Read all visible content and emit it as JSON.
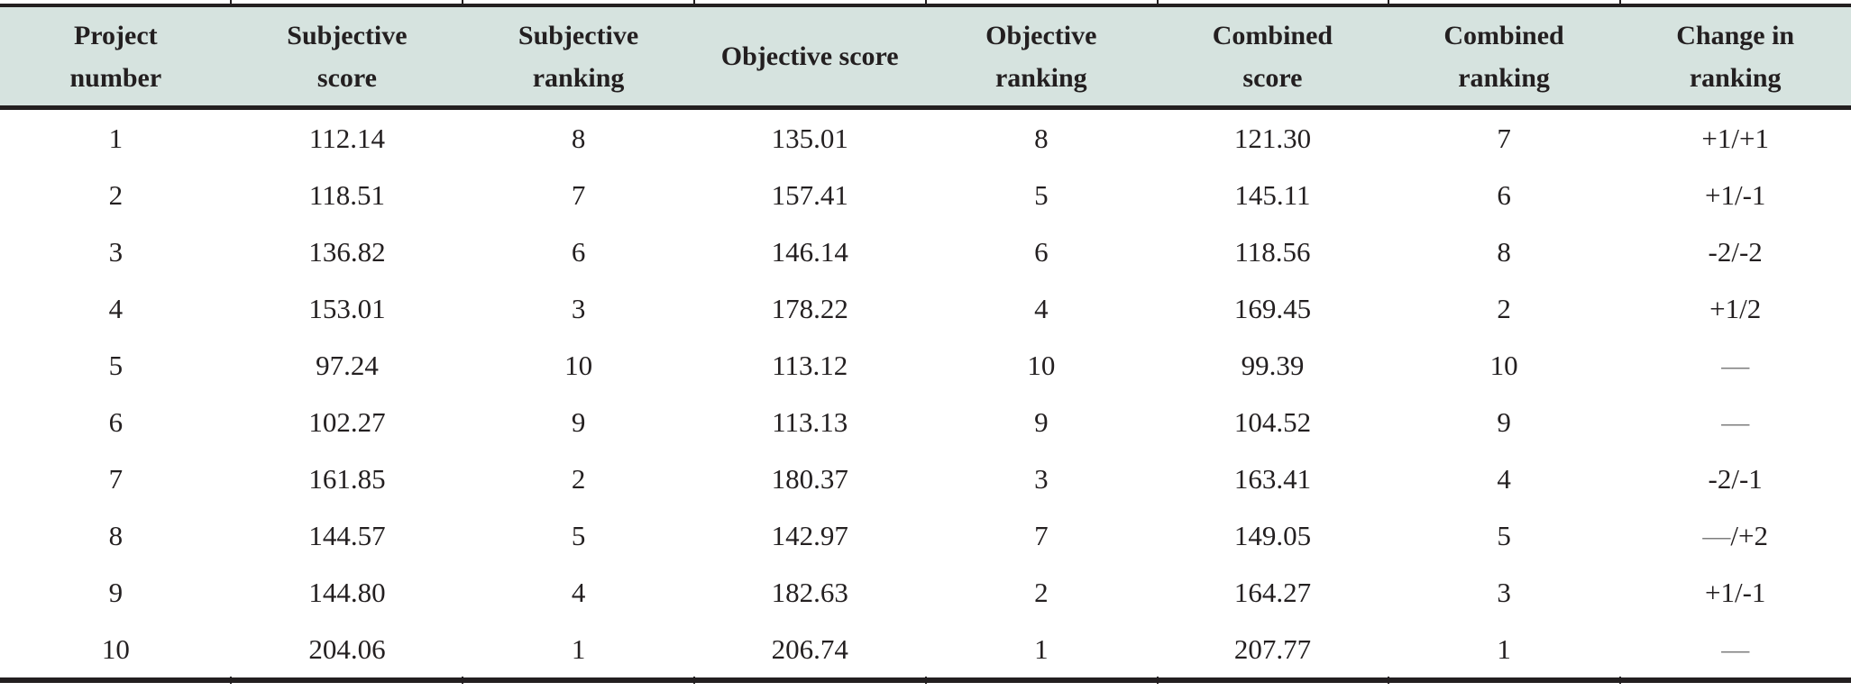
{
  "colors": {
    "header_bg": "#d6e3df",
    "rule": "#231f20",
    "text": "#231f20",
    "dash_gray": "#7d7d7d"
  },
  "table": {
    "columns": [
      {
        "line1": "Project",
        "line2": "number"
      },
      {
        "line1": "Subjective",
        "line2": "score"
      },
      {
        "line1": "Subjective",
        "line2": "ranking"
      },
      {
        "line1": "Objective score",
        "line2": ""
      },
      {
        "line1": "Objective",
        "line2": "ranking"
      },
      {
        "line1": "Combined",
        "line2": "score"
      },
      {
        "line1": "Combined",
        "line2": "ranking"
      },
      {
        "line1": "Change in",
        "line2": "ranking"
      }
    ],
    "rows": [
      {
        "cells": [
          "1",
          "112.14",
          "8",
          "135.01",
          "8",
          "121.30",
          "7",
          "+1/+1"
        ]
      },
      {
        "cells": [
          "2",
          "118.51",
          "7",
          "157.41",
          "5",
          "145.11",
          "6",
          "+1/-1"
        ]
      },
      {
        "cells": [
          "3",
          "136.82",
          "6",
          "146.14",
          "6",
          "118.56",
          "8",
          "-2/-2"
        ]
      },
      {
        "cells": [
          "4",
          "153.01",
          "3",
          "178.22",
          "4",
          "169.45",
          "2",
          "+1/2"
        ]
      },
      {
        "cells": [
          "5",
          "97.24",
          "10",
          "113.12",
          "10",
          "99.39",
          "10",
          "—"
        ]
      },
      {
        "cells": [
          "6",
          "102.27",
          "9",
          "113.13",
          "9",
          "104.52",
          "9",
          "—"
        ]
      },
      {
        "cells": [
          "7",
          "161.85",
          "2",
          "180.37",
          "3",
          "163.41",
          "4",
          "-2/-1"
        ]
      },
      {
        "cells": [
          "8",
          "144.57",
          "5",
          "142.97",
          "7",
          "149.05",
          "5",
          "—/+2"
        ]
      },
      {
        "cells": [
          "9",
          "144.80",
          "4",
          "182.63",
          "2",
          "164.27",
          "3",
          "+1/-1"
        ]
      },
      {
        "cells": [
          "10",
          "204.06",
          "1",
          "206.74",
          "1",
          "207.77",
          "1",
          "—"
        ]
      }
    ]
  }
}
